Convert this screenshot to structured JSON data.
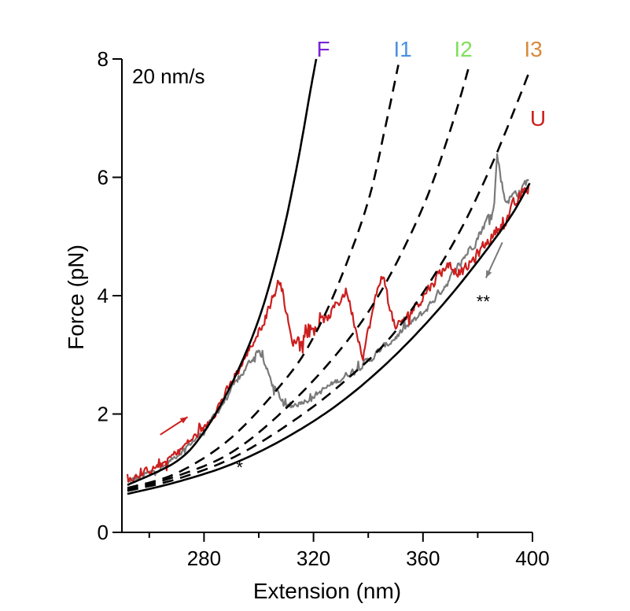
{
  "chart_data": {
    "type": "line",
    "title": "",
    "annotation_speed": "20 nm/s",
    "xlabel": "Extension (nm)",
    "ylabel": "Force (pN)",
    "xlim": [
      250,
      400
    ],
    "ylim": [
      0,
      8
    ],
    "x_major_ticks": [
      280,
      320,
      360,
      400
    ],
    "x_minor_ticks": [
      260,
      300,
      340,
      380
    ],
    "y_ticks": [
      0,
      2,
      4,
      6,
      8
    ],
    "x_tick_labels": [
      "280",
      "320",
      "360",
      "400"
    ],
    "y_tick_labels": [
      "0",
      "2",
      "4",
      "6",
      "8"
    ],
    "grid": false,
    "colors": {
      "pulling": "#cc1f1f",
      "relaxing": "#7a7a7a",
      "fit": "#000000",
      "label_F": "#7a22d6",
      "label_I1": "#4a90e2",
      "label_I2": "#7fe05a",
      "label_I3": "#d98a3a",
      "label_U": "#cc1f1f"
    },
    "curve_labels": [
      {
        "text": "F",
        "color": "#7a22d6"
      },
      {
        "text": "I1",
        "color": "#4a90e2"
      },
      {
        "text": "I2",
        "color": "#7fe05a"
      },
      {
        "text": "I3",
        "color": "#d98a3a"
      },
      {
        "text": "U",
        "color": "#cc1f1f"
      }
    ],
    "fit_curves": [
      {
        "label": "F",
        "style": "solid",
        "points": [
          [
            252,
            0.8
          ],
          [
            270,
            1.2
          ],
          [
            280,
            1.7
          ],
          [
            290,
            2.5
          ],
          [
            300,
            3.6
          ],
          [
            308,
            4.9
          ],
          [
            314,
            6.2
          ],
          [
            319,
            7.5
          ],
          [
            321,
            8.0
          ]
        ]
      },
      {
        "label": "I1",
        "style": "dashed",
        "points": [
          [
            252,
            0.75
          ],
          [
            270,
            1.0
          ],
          [
            290,
            1.6
          ],
          [
            310,
            2.6
          ],
          [
            320,
            3.3
          ],
          [
            330,
            4.3
          ],
          [
            340,
            5.6
          ],
          [
            346,
            6.8
          ],
          [
            351,
            7.9
          ]
        ]
      },
      {
        "label": "I2",
        "style": "dashed",
        "points": [
          [
            252,
            0.72
          ],
          [
            270,
            0.95
          ],
          [
            290,
            1.35
          ],
          [
            310,
            2.1
          ],
          [
            330,
            3.1
          ],
          [
            345,
            4.1
          ],
          [
            360,
            5.5
          ],
          [
            370,
            6.8
          ],
          [
            377,
            7.9
          ]
        ]
      },
      {
        "label": "I3",
        "style": "dashed",
        "points": [
          [
            252,
            0.7
          ],
          [
            270,
            0.9
          ],
          [
            290,
            1.25
          ],
          [
            310,
            1.8
          ],
          [
            330,
            2.5
          ],
          [
            350,
            3.4
          ],
          [
            370,
            4.8
          ],
          [
            385,
            6.2
          ],
          [
            399,
            7.8
          ]
        ]
      },
      {
        "label": "U",
        "style": "solid",
        "points": [
          [
            252,
            0.65
          ],
          [
            270,
            0.85
          ],
          [
            290,
            1.15
          ],
          [
            310,
            1.6
          ],
          [
            330,
            2.2
          ],
          [
            350,
            3.0
          ],
          [
            370,
            4.0
          ],
          [
            390,
            5.2
          ],
          [
            399,
            5.9
          ]
        ]
      }
    ],
    "markers": [
      {
        "text": "*",
        "x": 293,
        "y": 1.0
      },
      {
        "text": "**",
        "x": 382,
        "y": 3.8
      }
    ],
    "arrows": [
      {
        "name": "pulling-arrow",
        "color": "#cc1f1f",
        "from": [
          264,
          1.65
        ],
        "to": [
          274,
          1.95
        ]
      },
      {
        "name": "relaxing-arrow",
        "color": "#7a7a7a",
        "from": [
          389,
          4.9
        ],
        "to": [
          383,
          4.3
        ]
      }
    ],
    "series": [
      {
        "style": "noisy-trace",
        "color": "#7a7a7a",
        "noise": 0.1,
        "points": [
          [
            252,
            0.85
          ],
          [
            265,
            1.1
          ],
          [
            280,
            1.7
          ],
          [
            290,
            2.4
          ],
          [
            300,
            3.1
          ],
          [
            305,
            2.5
          ],
          [
            310,
            2.1
          ],
          [
            320,
            2.3
          ],
          [
            330,
            2.6
          ],
          [
            340,
            2.9
          ],
          [
            350,
            3.3
          ],
          [
            360,
            3.7
          ],
          [
            370,
            4.3
          ],
          [
            380,
            5.0
          ],
          [
            386,
            5.5
          ],
          [
            387,
            6.4
          ],
          [
            390,
            5.6
          ],
          [
            396,
            5.8
          ],
          [
            399,
            6.0
          ]
        ]
      },
      {
        "style": "noisy-trace",
        "color": "#cc1f1f",
        "noise": 0.14,
        "points": [
          [
            252,
            0.9
          ],
          [
            265,
            1.15
          ],
          [
            280,
            1.75
          ],
          [
            290,
            2.5
          ],
          [
            300,
            3.4
          ],
          [
            308,
            4.3
          ],
          [
            312,
            3.2
          ],
          [
            318,
            3.4
          ],
          [
            325,
            3.6
          ],
          [
            332,
            4.1
          ],
          [
            338,
            3.0
          ],
          [
            345,
            4.4
          ],
          [
            350,
            3.4
          ],
          [
            360,
            4.0
          ],
          [
            368,
            4.5
          ],
          [
            375,
            4.4
          ],
          [
            385,
            5.0
          ],
          [
            392,
            5.4
          ],
          [
            399,
            5.9
          ]
        ]
      }
    ]
  }
}
